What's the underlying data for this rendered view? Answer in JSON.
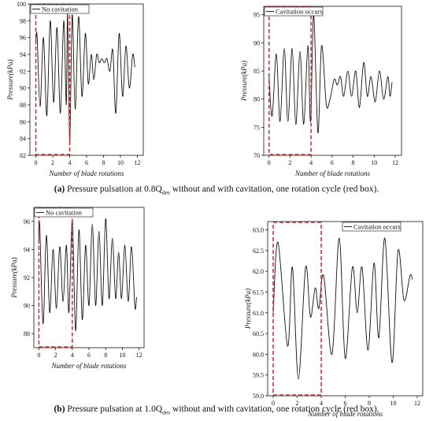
{
  "chart_data": [
    {
      "type": "line",
      "xlabel": "Number of blade rotations",
      "ylabel": "Pressure(kPa)",
      "xlim": [
        -0.7,
        12.7
      ],
      "xticks": [
        0,
        2,
        4,
        6,
        8,
        10,
        12
      ],
      "ylim": [
        82,
        100
      ],
      "yticks": [
        82,
        84,
        86,
        88,
        90,
        92,
        94,
        96,
        98,
        100
      ],
      "legend": "upper left",
      "highlight": {
        "x": [
          0,
          4
        ],
        "color": "#e02020"
      },
      "x": [
        0,
        0.15,
        0.5,
        0.9,
        1.3,
        1.7,
        2.1,
        2.5,
        2.9,
        3.3,
        3.6,
        3.75,
        4.0,
        4.3,
        4.65,
        5.05,
        5.45,
        5.85,
        6.2,
        6.55,
        6.85,
        7.2,
        7.5,
        7.8,
        8.1,
        8.4,
        8.75,
        9.1,
        9.45,
        9.85,
        10.25,
        10.65,
        11.05,
        11.45,
        11.7
      ],
      "series": [
        {
          "name": "No cavitation",
          "color": "#111111",
          "values": [
            95.5,
            96.2,
            87.8,
            96,
            86.7,
            98,
            88.3,
            97.2,
            87,
            98,
            88,
            98.8,
            83.5,
            98.7,
            87.5,
            98.5,
            89,
            96.5,
            90.5,
            94,
            91,
            94,
            93,
            93.5,
            93,
            93.5,
            92,
            94.5,
            87,
            96.5,
            89,
            95,
            90,
            94,
            92.5
          ]
        }
      ]
    },
    {
      "type": "line",
      "xlabel": "Number of blade rotations",
      "ylabel": "Pressure(kPa)",
      "xlim": [
        -0.5,
        12.6
      ],
      "xticks": [
        0,
        2,
        4,
        6,
        8,
        10,
        12
      ],
      "ylim": [
        70,
        96.5
      ],
      "yticks": [
        70,
        75,
        80,
        85,
        90,
        95
      ],
      "legend": "upper left",
      "highlight": {
        "x": [
          0,
          4
        ],
        "color": "#e02020"
      },
      "x": [
        0,
        0.3,
        0.7,
        1.05,
        1.45,
        1.8,
        2.2,
        2.55,
        2.95,
        3.3,
        3.7,
        3.95,
        4.25,
        4.65,
        5.0,
        5.45,
        5.8,
        6.2,
        6.5,
        6.8,
        7.1,
        7.5,
        7.85,
        8.25,
        8.6,
        9.0,
        9.35,
        9.7,
        10.1,
        10.5,
        10.9,
        11.3,
        11.5,
        11.7
      ],
      "series": [
        {
          "name": "Cavitation occurs",
          "color": "#111111",
          "values": [
            84,
            77,
            88,
            76,
            89,
            76,
            89,
            75.5,
            88.5,
            75.5,
            89.5,
            76,
            95,
            74,
            89.5,
            79,
            80,
            83.5,
            82.5,
            84,
            80.5,
            85,
            80.5,
            85,
            78.5,
            86.5,
            80.5,
            84,
            79.5,
            85,
            80,
            84,
            80.5,
            83
          ]
        }
      ]
    },
    {
      "type": "line",
      "xlabel": "Number of blade rotations",
      "ylabel": "Pressure(kPa)",
      "xlim": [
        -0.6,
        12.6
      ],
      "xticks": [
        0,
        2,
        4,
        6,
        8,
        10,
        12
      ],
      "ylim": [
        87,
        97
      ],
      "yticks": [
        88,
        90,
        92,
        94,
        96
      ],
      "legend": "upper left",
      "highlight": {
        "x": [
          0,
          4
        ],
        "color": "#e02020"
      },
      "x": [
        0,
        0.1,
        0.5,
        0.9,
        1.3,
        1.7,
        2.1,
        2.5,
        2.9,
        3.3,
        3.6,
        4.0,
        4.4,
        4.8,
        5.2,
        5.6,
        6.0,
        6.4,
        6.8,
        7.2,
        7.6,
        8.0,
        8.4,
        8.8,
        9.2,
        9.55,
        9.9,
        10.3,
        10.7,
        11.1,
        11.5,
        11.7
      ],
      "series": [
        {
          "name": "No cavitation",
          "color": "#111111",
          "values": [
            94.5,
            95.8,
            88.7,
            95,
            89.5,
            94,
            89.8,
            94.2,
            90.3,
            94.3,
            89.5,
            96,
            88.2,
            95.4,
            89,
            94.3,
            90,
            95.8,
            90,
            95.3,
            90,
            96.2,
            90.5,
            94.8,
            90.5,
            93.8,
            90.5,
            94.3,
            90.3,
            94.2,
            89.9,
            90.6
          ]
        }
      ]
    },
    {
      "type": "line",
      "xlabel": "Number of blade rotations",
      "ylabel": "Pressure(kPa)",
      "xlim": [
        -0.46,
        12.46
      ],
      "xticks": [
        0,
        2,
        4,
        6,
        8,
        10,
        12
      ],
      "ylim": [
        59,
        63.2
      ],
      "yticks": [
        {
          "value": 59,
          "label": "59.0"
        },
        59.5,
        {
          "value": 60,
          "label": "60.0"
        },
        60.5,
        {
          "value": 61,
          "label": "61.0"
        },
        61.5,
        {
          "value": 62,
          "label": "62.0"
        },
        62.5,
        {
          "value": 63,
          "label": "63.0"
        }
      ],
      "legend": "upper right",
      "highlight": {
        "x": [
          0,
          4
        ],
        "color": "#e02020"
      },
      "x": [
        0,
        0.4,
        1.2,
        1.6,
        2.1,
        2.7,
        3.1,
        3.5,
        3.8,
        4.2,
        4.9,
        5.5,
        6.0,
        6.6,
        7.0,
        7.4,
        7.9,
        8.4,
        8.8,
        9.3,
        9.9,
        10.4,
        10.9,
        11.4,
        11.6
      ],
      "series": [
        {
          "name": "Cavitation occurs",
          "color": "#111111",
          "values": [
            61.0,
            62.7,
            60.2,
            62.1,
            59.4,
            62.1,
            60.9,
            61.6,
            61.1,
            61.9,
            60.0,
            62.8,
            59.9,
            62.1,
            61.0,
            62.1,
            60.1,
            62.2,
            60.4,
            62.8,
            59.8,
            62.5,
            61.3,
            61.9,
            61.8
          ]
        }
      ]
    }
  ],
  "captions": [
    {
      "label": "(a)",
      "text": " Pressure pulsation at 0.8Q",
      "sub": "des",
      "rest": " without and with cavitation, one rotation cycle (red box)."
    },
    {
      "label": "(b)",
      "text": " Pressure pulsation at 1.0Q",
      "sub": "des",
      "rest": " without and with cavitation, one rotation cycle (red box)."
    }
  ]
}
